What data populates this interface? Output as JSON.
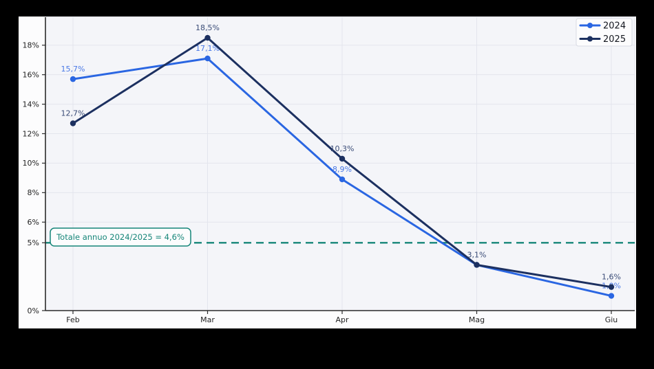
{
  "figure": {
    "outer_background": "#000000",
    "canvas_background": "#fcfcfd",
    "plot_background": "#f4f5f9",
    "grid_color": "#e3e5ed",
    "spine_color": "#2b2b2b",
    "tick_label_color": "#1f1f1f",
    "legend_border_color": "#d8dae2",
    "legend_text_color": "#14171f"
  },
  "chart_data": {
    "type": "line",
    "categories": [
      "Feb",
      "Mar",
      "Apr",
      "Mag",
      "Giu"
    ],
    "series": [
      {
        "name": "2024",
        "color": "#2a66e2",
        "label_color": "#4a79e6",
        "values": [
          15.7,
          17.1,
          8.9,
          3.1,
          1.0
        ],
        "point_labels": [
          "15,7%",
          "17,1%",
          "8,9%",
          "",
          "1,0%"
        ]
      },
      {
        "name": "2025",
        "color": "#1c3060",
        "label_color": "#3a4c77",
        "values": [
          12.7,
          18.5,
          10.3,
          3.1,
          1.6
        ],
        "point_labels": [
          "12,7%",
          "18,5%",
          "10,3%",
          "3,1%",
          "1,6%"
        ]
      }
    ],
    "y_axis": {
      "range": [
        0,
        19.9
      ],
      "unit": "%",
      "ticks": [
        {
          "value": 18,
          "label": "18%",
          "grid": true
        },
        {
          "value": 16,
          "label": "16%",
          "grid": true
        },
        {
          "value": 14,
          "label": "14%",
          "grid": true
        },
        {
          "value": 12,
          "label": "12%",
          "grid": true
        },
        {
          "value": 10,
          "label": "10%",
          "grid": true
        },
        {
          "value": 8,
          "label": "8%",
          "grid": true
        },
        {
          "value": 6,
          "label": "6%",
          "grid": true
        },
        {
          "value": 4.6,
          "label": "5%",
          "grid": false
        },
        {
          "value": 0,
          "label": "0%",
          "grid": false
        }
      ]
    },
    "reference_line": {
      "value": 4.6,
      "color": "#158578",
      "style": "dashed",
      "annotation": "Totale annuo 2024/2025 = 4,6%"
    },
    "legend": {
      "position": "top-right",
      "entries": [
        {
          "label": "2024"
        },
        {
          "label": "2025"
        }
      ]
    },
    "grid": "both"
  }
}
